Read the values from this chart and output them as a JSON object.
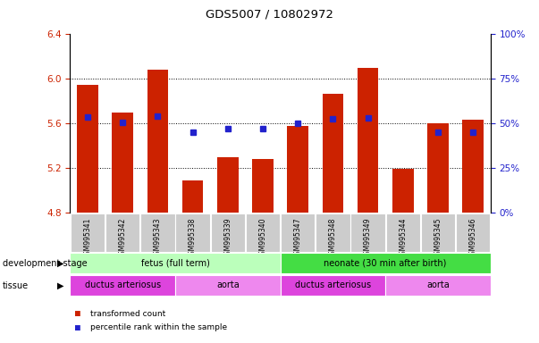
{
  "title": "GDS5007 / 10802972",
  "samples": [
    "GSM995341",
    "GSM995342",
    "GSM995343",
    "GSM995338",
    "GSM995339",
    "GSM995340",
    "GSM995347",
    "GSM995348",
    "GSM995349",
    "GSM995344",
    "GSM995345",
    "GSM995346"
  ],
  "bar_values": [
    5.95,
    5.7,
    6.08,
    5.09,
    5.3,
    5.28,
    5.58,
    5.87,
    6.1,
    5.19,
    5.6,
    5.63
  ],
  "dot_values": [
    5.66,
    5.61,
    5.67,
    5.52,
    5.55,
    5.55,
    5.6,
    5.64,
    5.65,
    null,
    5.52,
    5.52
  ],
  "bar_bottom": 4.8,
  "ylim_left": [
    4.8,
    6.4
  ],
  "ylim_right": [
    0,
    100
  ],
  "yticks_left": [
    4.8,
    5.2,
    5.6,
    6.0,
    6.4
  ],
  "yticks_right": [
    0,
    25,
    50,
    75,
    100
  ],
  "bar_color": "#cc2200",
  "dot_color": "#2222cc",
  "bar_width": 0.6,
  "development_stage_groups": [
    {
      "label": "fetus (full term)",
      "start": 0,
      "end": 6,
      "color": "#bbffbb"
    },
    {
      "label": "neonate (30 min after birth)",
      "start": 6,
      "end": 12,
      "color": "#44dd44"
    }
  ],
  "tissue_groups": [
    {
      "label": "ductus arteriosus",
      "start": 0,
      "end": 3,
      "color": "#dd44dd"
    },
    {
      "label": "aorta",
      "start": 3,
      "end": 6,
      "color": "#ee88ee"
    },
    {
      "label": "ductus arteriosus",
      "start": 6,
      "end": 9,
      "color": "#dd44dd"
    },
    {
      "label": "aorta",
      "start": 9,
      "end": 12,
      "color": "#ee88ee"
    }
  ],
  "legend_items": [
    {
      "label": "transformed count",
      "color": "#cc2200"
    },
    {
      "label": "percentile rank within the sample",
      "color": "#2222cc"
    }
  ]
}
